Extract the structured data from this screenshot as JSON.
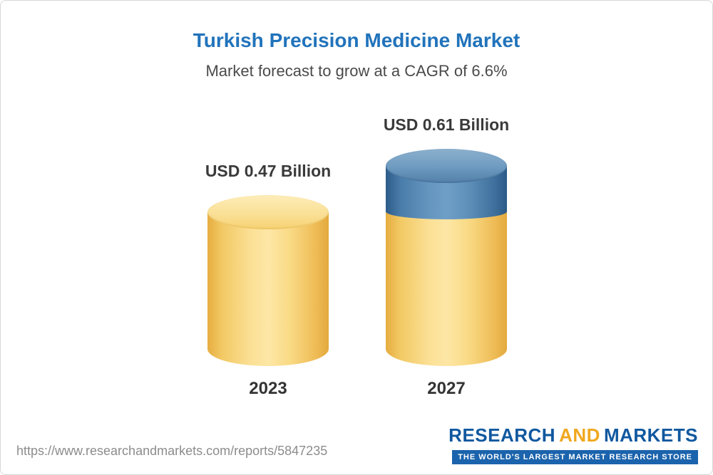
{
  "page": {
    "source_url": "https://www.researchandmarkets.com/reports/5847235"
  },
  "logo": {
    "part1": "RESEARCH",
    "part2": "AND",
    "part3": "MARKETS",
    "tagline": "THE WORLD'S LARGEST MARKET RESEARCH STORE"
  },
  "chart_data": {
    "type": "bar",
    "title": "Turkish Precision Medicine Market",
    "subtitle": "Market forecast to grow at a CAGR of 6.6%",
    "categories": [
      "2023",
      "2027"
    ],
    "values": [
      0.47,
      0.61
    ],
    "value_labels": [
      "USD 0.47 Billion",
      "USD 0.61 Billion"
    ],
    "unit": "USD Billion",
    "cagr_percent": 6.6,
    "ylim": [
      0,
      0.65
    ],
    "grid": false,
    "legend": false,
    "colors": {
      "bar_base": "#F7CE68",
      "bar_growth_segment": "#4A7CA9",
      "title_text": "#2173BB",
      "label_text": "#3A3A3A"
    },
    "notes": "2027 bar shows base value in yellow with growth increment (0.14) as blue top segment; bars drawn as 3D cylinders"
  }
}
